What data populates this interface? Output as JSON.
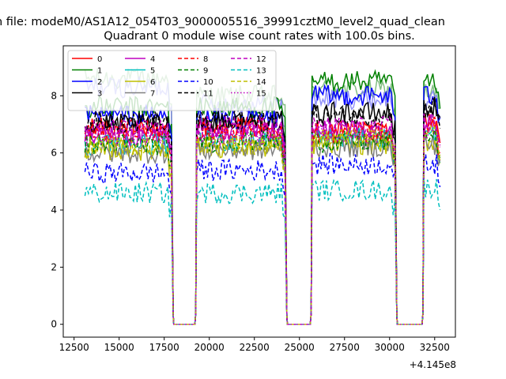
{
  "figure": {
    "suptitle": "n file: modeM0/AS1A12_054T03_9000005516_39991cztM0_level2_quad_clean",
    "offset_label": "+4.145e8"
  },
  "chart_data": {
    "type": "line",
    "title": "Quadrant 0 module wise count rates with 100.0s bins.",
    "xlabel": "",
    "ylabel": "",
    "xlim": [
      11900,
      33650
    ],
    "ylim": [
      -0.45,
      9.75
    ],
    "xticks": [
      12500,
      15000,
      17500,
      20000,
      22500,
      25000,
      27500,
      30000,
      32500
    ],
    "xtick_labels": [
      "12500",
      "15000",
      "17500",
      "20000",
      "22500",
      "25000",
      "27500",
      "30000",
      "32500"
    ],
    "yticks": [
      0,
      2,
      4,
      6,
      8
    ],
    "ytick_labels": [
      "0",
      "2",
      "4",
      "6",
      "8"
    ],
    "grid": false,
    "legend_position": "upper-left",
    "legend_columns": 4,
    "gaps": [
      {
        "start": 18000,
        "end": 19200
      },
      {
        "start": 24300,
        "end": 25600
      },
      {
        "start": 30400,
        "end": 31800
      }
    ],
    "segments": [
      {
        "start": 13100,
        "end": 17900
      },
      {
        "start": 19300,
        "end": 24200
      },
      {
        "start": 25700,
        "end": 30300
      },
      {
        "start": 31900,
        "end": 32800
      }
    ],
    "bin_width": 100,
    "series": [
      {
        "name": "0",
        "color": "#ff0000",
        "dash": "solid",
        "alpha": 1.0,
        "levels": [
          6.9,
          6.9,
          6.8,
          7.1
        ]
      },
      {
        "name": "1",
        "color": "#008000",
        "dash": "solid",
        "alpha": 1.0,
        "levels": [
          7.6,
          7.6,
          8.5,
          8.4
        ]
      },
      {
        "name": "2",
        "color": "#0000ff",
        "dash": "solid",
        "alpha": 1.0,
        "levels": [
          7.3,
          7.2,
          8.0,
          8.0
        ]
      },
      {
        "name": "3",
        "color": "#000000",
        "dash": "solid",
        "alpha": 1.0,
        "levels": [
          7.0,
          7.1,
          7.4,
          7.6
        ]
      },
      {
        "name": "4",
        "color": "#bf00bf",
        "dash": "solid",
        "alpha": 1.0,
        "levels": [
          6.6,
          6.7,
          6.8,
          7.0
        ]
      },
      {
        "name": "5",
        "color": "#00bfbf",
        "dash": "solid",
        "alpha": 1.0,
        "levels": [
          6.3,
          6.4,
          6.5,
          6.6
        ]
      },
      {
        "name": "6",
        "color": "#bfbf00",
        "dash": "solid",
        "alpha": 1.0,
        "levels": [
          6.1,
          6.2,
          6.3,
          6.4
        ]
      },
      {
        "name": "7",
        "color": "#808080",
        "dash": "solid",
        "alpha": 1.0,
        "levels": [
          6.0,
          6.1,
          6.2,
          6.3
        ]
      },
      {
        "name": "8",
        "color": "#ff0000",
        "dash": "dashed",
        "alpha": 1.0,
        "levels": [
          6.7,
          6.8,
          6.7,
          6.9
        ]
      },
      {
        "name": "9",
        "color": "#008000",
        "dash": "dashed",
        "alpha": 1.0,
        "levels": [
          6.3,
          6.4,
          6.4,
          6.6
        ]
      },
      {
        "name": "10",
        "color": "#0000ff",
        "dash": "dashed",
        "alpha": 1.0,
        "levels": [
          5.3,
          5.4,
          5.6,
          5.6
        ]
      },
      {
        "name": "11",
        "color": "#000000",
        "dash": "dashed",
        "alpha": 1.0,
        "levels": [
          7.1,
          7.1,
          7.3,
          7.6
        ]
      },
      {
        "name": "12",
        "color": "#bf00bf",
        "dash": "dashed",
        "alpha": 1.0,
        "levels": [
          6.8,
          6.9,
          6.9,
          7.1
        ]
      },
      {
        "name": "13",
        "color": "#00bfbf",
        "dash": "dashed",
        "alpha": 1.0,
        "levels": [
          4.6,
          4.6,
          4.7,
          4.8
        ]
      },
      {
        "name": "14",
        "color": "#bfbf00",
        "dash": "dashed",
        "alpha": 1.0,
        "levels": [
          6.2,
          6.3,
          6.5,
          6.6
        ]
      },
      {
        "name": "15",
        "color": "#bf00bf",
        "dash": "dotted",
        "alpha": 1.0,
        "levels": [
          6.6,
          6.6,
          6.7,
          6.8
        ]
      },
      {
        "name": "",
        "color": "#5aaa5a",
        "dash": "solid",
        "alpha": 0.75,
        "levels": [
          8.6,
          8.0,
          8.2,
          8.1
        ]
      },
      {
        "name": "",
        "color": "#6f6ff7",
        "dash": "solid",
        "alpha": 0.75,
        "levels": [
          8.3,
          7.7,
          7.9,
          7.8
        ]
      }
    ]
  }
}
